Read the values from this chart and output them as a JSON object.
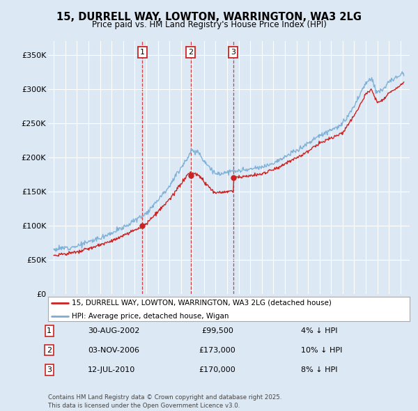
{
  "title": "15, DURRELL WAY, LOWTON, WARRINGTON, WA3 2LG",
  "subtitle": "Price paid vs. HM Land Registry's House Price Index (HPI)",
  "bg_color": "#dce8f4",
  "plot_bg": "#dce8f4",
  "grid_color": "#ffffff",
  "hpi_color": "#7aaed6",
  "price_color": "#cc2222",
  "transactions": [
    {
      "num": 1,
      "date_x": 2002.66,
      "price": 99500
    },
    {
      "num": 2,
      "date_x": 2006.84,
      "price": 173000
    },
    {
      "num": 3,
      "date_x": 2010.53,
      "price": 170000
    }
  ],
  "legend_entries": [
    "15, DURRELL WAY, LOWTON, WARRINGTON, WA3 2LG (detached house)",
    "HPI: Average price, detached house, Wigan"
  ],
  "table_entries": [
    {
      "num": "1",
      "date": "30-AUG-2002",
      "price": "£99,500",
      "pct": "4% ↓ HPI"
    },
    {
      "num": "2",
      "date": "03-NOV-2006",
      "price": "£173,000",
      "pct": "10% ↓ HPI"
    },
    {
      "num": "3",
      "date": "12-JUL-2010",
      "price": "£170,000",
      "pct": "8% ↓ HPI"
    }
  ],
  "footer": "Contains HM Land Registry data © Crown copyright and database right 2025.\nThis data is licensed under the Open Government Licence v3.0.",
  "ylim": [
    0,
    370000
  ],
  "xlim_start": 1994.5,
  "xlim_end": 2025.8,
  "yticks": [
    0,
    50000,
    100000,
    150000,
    200000,
    250000,
    300000,
    350000
  ],
  "ylabels": [
    "£0",
    "£50K",
    "£100K",
    "£150K",
    "£200K",
    "£250K",
    "£300K",
    "£350K"
  ]
}
